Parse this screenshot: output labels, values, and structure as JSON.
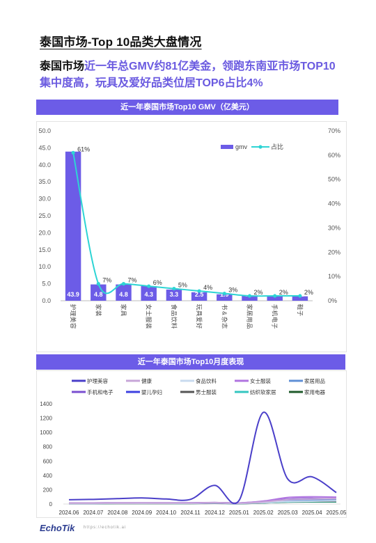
{
  "page": {
    "title": "泰国市场-Top 10品类大盘情况",
    "headline_lead": "泰国市场",
    "headline_rest": "近一年总GMV约81亿美金，领跑东南亚市场TOP10集中度高，玩具及爱好品类位居TOP6占比4%"
  },
  "footer": {
    "logo": "EchoTik",
    "url": "https://echotik.ai"
  },
  "chart_data": [
    {
      "type": "bar",
      "title": "近一年泰国市场Top10 GMV（亿美元）",
      "categories": [
        "护理美容",
        "家装",
        "家具",
        "女士服装",
        "食品饮料",
        "玩具爱好",
        "书&杂志",
        "家居用品",
        "手机电子",
        "鞋子"
      ],
      "series": [
        {
          "name": "gmv",
          "values": [
            43.9,
            4.8,
            4.8,
            4.3,
            3.3,
            2.5,
            1.9,
            1.6,
            1.4,
            1.3
          ],
          "data_labels": [
            "43.9",
            "4.8",
            "4.8",
            "4.3",
            "3.3",
            "2.5",
            "1.9",
            "1.6",
            "1.4",
            "1.3"
          ],
          "color": "#6c5ce7"
        },
        {
          "name": "占比",
          "type": "line",
          "axis": "right",
          "values": [
            61,
            7,
            7,
            6,
            5,
            4,
            3,
            2,
            2,
            2
          ],
          "data_labels": [
            "61%",
            "7%",
            "7%",
            "6%",
            "5%",
            "4%",
            "3%",
            "2%",
            "2%",
            "2%"
          ],
          "color": "#2dd4d4"
        }
      ],
      "ylim": [
        0,
        50
      ],
      "yticks": [
        "0.0",
        "5.0",
        "10.0",
        "15.0",
        "20.0",
        "25.0",
        "30.0",
        "35.0",
        "40.0",
        "45.0",
        "50.0"
      ],
      "y2lim": [
        0,
        70
      ],
      "y2ticks": [
        "0%",
        "10%",
        "20%",
        "30%",
        "40%",
        "50%",
        "60%",
        "70%"
      ],
      "legend_position": "top-right"
    },
    {
      "type": "line",
      "title": "近一年泰国市场Top10月度表现",
      "x": [
        "2024.06",
        "2024.07",
        "2024.08",
        "2024.09",
        "2024.10",
        "2024.11",
        "2024.12",
        "2025.01",
        "2025.02",
        "2025.03",
        "2025.04",
        "2025.05"
      ],
      "ylim": [
        0,
        1400
      ],
      "yticks": [
        "0",
        "200",
        "400",
        "600",
        "800",
        "1000",
        "1200",
        "1400"
      ],
      "legend_position": "top",
      "series": [
        {
          "name": "护理美容",
          "color": "#4a3fc9",
          "values": [
            60,
            65,
            75,
            85,
            70,
            65,
            260,
            50,
            1280,
            350,
            380,
            160
          ]
        },
        {
          "name": "健康",
          "color": "#c7a6d8",
          "values": [
            12,
            12,
            13,
            14,
            13,
            13,
            18,
            12,
            30,
            60,
            70,
            75
          ]
        },
        {
          "name": "食品饮料",
          "color": "#c9dbef",
          "values": [
            10,
            10,
            11,
            11,
            11,
            11,
            15,
            11,
            20,
            35,
            40,
            45
          ]
        },
        {
          "name": "女士服装",
          "color": "#b074e0",
          "values": [
            15,
            15,
            16,
            16,
            16,
            17,
            20,
            15,
            40,
            90,
            100,
            95
          ]
        },
        {
          "name": "家居用品",
          "color": "#5f8fd6",
          "values": [
            12,
            12,
            13,
            13,
            13,
            14,
            18,
            13,
            30,
            55,
            60,
            60
          ]
        },
        {
          "name": "手机和电子",
          "color": "#7a4fd0",
          "values": [
            14,
            14,
            15,
            15,
            15,
            15,
            20,
            14,
            35,
            65,
            75,
            70
          ]
        },
        {
          "name": "婴儿孕妇",
          "color": "#3d40e0",
          "values": [
            10,
            10,
            11,
            11,
            11,
            11,
            14,
            10,
            22,
            40,
            45,
            45
          ]
        },
        {
          "name": "男士服装",
          "color": "#555555",
          "values": [
            9,
            9,
            10,
            10,
            10,
            10,
            13,
            9,
            20,
            35,
            40,
            40
          ]
        },
        {
          "name": "纺织软家居",
          "color": "#34c6c0",
          "values": [
            8,
            8,
            9,
            9,
            9,
            9,
            12,
            8,
            18,
            30,
            35,
            35
          ]
        },
        {
          "name": "家用电器",
          "color": "#1f5a2a",
          "values": [
            7,
            7,
            8,
            8,
            8,
            8,
            11,
            7,
            16,
            28,
            30,
            30
          ]
        }
      ]
    }
  ]
}
